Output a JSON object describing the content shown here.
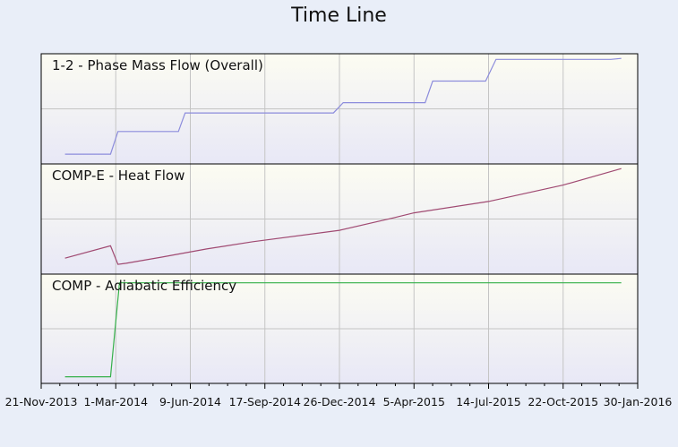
{
  "title": "Time Line",
  "colors": {
    "background": "#e9eef8",
    "panel_top": "#fcfcf2",
    "panel_bottom": "#e8e8f6",
    "grid": "#c4c4c4",
    "axis": "#000000"
  },
  "chart_data": {
    "type": "line",
    "title": "Time Line",
    "x_axis": {
      "type": "date",
      "range": [
        "2013-11-21",
        "2016-01-30"
      ],
      "tick_dates": [
        "2013-11-21",
        "2014-03-01",
        "2014-06-09",
        "2014-09-17",
        "2014-12-26",
        "2015-04-05",
        "2015-07-14",
        "2015-10-22",
        "2016-01-30"
      ],
      "tick_labels": [
        "21-Nov-2013",
        "1-Mar-2014",
        "9-Jun-2014",
        "17-Sep-2014",
        "26-Dec-2014",
        "5-Apr-2015",
        "14-Jul-2015",
        "22-Oct-2015",
        "30-Jan-2016"
      ]
    },
    "grid": true,
    "panels": [
      {
        "label": "1-2 - Phase Mass Flow (Overall)",
        "color": "#8c8cdc",
        "ylim": [
          0,
          1
        ],
        "points": [
          [
            "2013-12-23",
            0.06
          ],
          [
            "2014-02-22",
            0.06
          ],
          [
            "2014-03-04",
            0.28
          ],
          [
            "2014-05-24",
            0.28
          ],
          [
            "2014-06-02",
            0.46
          ],
          [
            "2014-09-09",
            0.46
          ],
          [
            "2014-12-18",
            0.46
          ],
          [
            "2014-12-31",
            0.56
          ],
          [
            "2015-03-08",
            0.56
          ],
          [
            "2015-03-22",
            0.56
          ],
          [
            "2015-04-20",
            0.56
          ],
          [
            "2015-04-30",
            0.77
          ],
          [
            "2015-07-10",
            0.77
          ],
          [
            "2015-07-24",
            0.98
          ],
          [
            "2015-12-25",
            0.98
          ],
          [
            "2016-01-08",
            0.99
          ]
        ]
      },
      {
        "label": "COMP-E - Heat Flow",
        "color": "#a04a72",
        "ylim": [
          0,
          1
        ],
        "points": [
          [
            "2013-12-23",
            0.12
          ],
          [
            "2014-02-22",
            0.24
          ],
          [
            "2014-03-04",
            0.06
          ],
          [
            "2014-03-15",
            0.07
          ],
          [
            "2014-05-01",
            0.13
          ],
          [
            "2014-07-01",
            0.21
          ],
          [
            "2014-09-01",
            0.28
          ],
          [
            "2014-12-26",
            0.39
          ],
          [
            "2015-03-08",
            0.51
          ],
          [
            "2015-04-05",
            0.56
          ],
          [
            "2015-07-14",
            0.67
          ],
          [
            "2015-10-22",
            0.83
          ],
          [
            "2016-01-08",
            0.99
          ]
        ]
      },
      {
        "label": "COMP - Adiabatic Efficiency",
        "color": "#35b04a",
        "ylim": [
          0,
          1
        ],
        "points": [
          [
            "2013-12-23",
            0.03
          ],
          [
            "2014-02-22",
            0.03
          ],
          [
            "2014-03-06",
            0.95
          ],
          [
            "2016-01-08",
            0.95
          ]
        ]
      }
    ]
  }
}
